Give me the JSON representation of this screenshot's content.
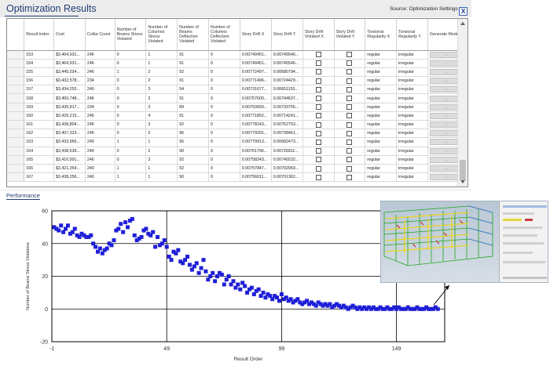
{
  "header": {
    "title": "Optimization Results",
    "source": "Source: Optimization Settings",
    "close": "X"
  },
  "colors": {
    "accent": "#1f3d73",
    "points": "#1f1fd8",
    "grid": "#000000"
  },
  "table": {
    "columns": [
      "",
      "Result Index",
      "Cost",
      "Collar Count",
      "Number of Beams Stress Violated",
      "Number of Columns Stress Violated",
      "Number of Beams Deflection Violated",
      "Number of Columns Deflection Violated",
      "Story Drift X",
      "Story Drift Y",
      "Story Drift Violated X",
      "Story Drift Violated Y",
      "Torsional Regularity X",
      "Torsional Regularity Y",
      "Generate Model"
    ],
    "generate_label": "...",
    "rows": [
      [
        "153",
        "$3,464,931...",
        "246",
        "0",
        "1",
        "91",
        "0",
        "0.00749451...",
        "0.00745546...",
        "regular",
        "irregular"
      ],
      [
        "154",
        "$3,464,931...",
        "246",
        "0",
        "1",
        "91",
        "0",
        "0.00749451...",
        "0.00745546...",
        "regular",
        "irregular"
      ],
      [
        "155",
        "$3,445,024...",
        "246",
        "1",
        "2",
        "92",
        "0",
        "0.00772497...",
        "0.00680794...",
        "regular",
        "irregular"
      ],
      [
        "156",
        "$3,432,578...",
        "234",
        "0",
        "2",
        "91",
        "0",
        "0.00771496...",
        "0.00724429...",
        "regular",
        "irregular"
      ],
      [
        "157",
        "$3,434,253...",
        "240",
        "0",
        "3",
        "94",
        "0",
        "0.00731677...",
        "0.00651153...",
        "regular",
        "irregular"
      ],
      [
        "158",
        "$3,450,748...",
        "246",
        "0",
        "3",
        "91",
        "0",
        "0.00757600...",
        "0.00744637...",
        "regular",
        "irregular"
      ],
      [
        "159",
        "$3,435,917...",
        "234",
        "0",
        "3",
        "89",
        "0",
        "0.00753650...",
        "0.00733755...",
        "regular",
        "irregular"
      ],
      [
        "160",
        "$3,429,215...",
        "246",
        "0",
        "4",
        "91",
        "0",
        "0.00771852...",
        "0.00714241...",
        "regular",
        "irregular"
      ],
      [
        "161",
        "$3,438,804...",
        "246",
        "0",
        "3",
        "92",
        "0",
        "0.00778143...",
        "0.00762753...",
        "regular",
        "irregular"
      ],
      [
        "162",
        "$3,407,323...",
        "246",
        "0",
        "2",
        "96",
        "0",
        "0.00779291...",
        "0.00738461...",
        "regular",
        "irregular"
      ],
      [
        "163",
        "$3,433,966...",
        "240",
        "1",
        "1",
        "95",
        "0",
        "0.00779913...",
        "0.00682473...",
        "regular",
        "irregular"
      ],
      [
        "164",
        "$3,438,639...",
        "240",
        "0",
        "2",
        "90",
        "0",
        "0.00761796...",
        "0.00726911...",
        "regular",
        "irregular"
      ],
      [
        "165",
        "$3,410,991...",
        "246",
        "0",
        "3",
        "92",
        "0",
        "0.00758243...",
        "0.00745532...",
        "regular",
        "irregular"
      ],
      [
        "166",
        "$3,421,354...",
        "240",
        "1",
        "1",
        "92",
        "0",
        "0.00757847...",
        "0.00702969...",
        "regular",
        "irregular"
      ],
      [
        "167",
        "$3,438,256...",
        "240",
        "1",
        "1",
        "90",
        "0",
        "0.00756011...",
        "0.00701362...",
        "regular",
        "irregular"
      ]
    ]
  },
  "performance": {
    "label": "Performance",
    "ylabel": "Number of Beams Stress Violations",
    "xlabel": "Result Order",
    "xticks": [
      "-1",
      "49",
      "99",
      "149"
    ],
    "yticks": [
      "60",
      "40",
      "20",
      "0",
      "-20"
    ]
  },
  "chart_data": {
    "type": "scatter",
    "xlabel": "Result Order",
    "ylabel": "Number of Beams Stress Violations",
    "xlim": [
      -1,
      170
    ],
    "ylim": [
      -20,
      60
    ],
    "grid": true,
    "x": [
      0,
      1,
      2,
      3,
      4,
      5,
      6,
      7,
      8,
      9,
      10,
      11,
      12,
      13,
      14,
      15,
      16,
      17,
      18,
      19,
      20,
      21,
      22,
      23,
      24,
      25,
      26,
      27,
      28,
      29,
      30,
      31,
      32,
      33,
      34,
      35,
      36,
      37,
      38,
      39,
      40,
      41,
      42,
      43,
      44,
      45,
      46,
      47,
      48,
      49,
      50,
      51,
      52,
      53,
      54,
      55,
      56,
      57,
      58,
      59,
      60,
      61,
      62,
      63,
      64,
      65,
      66,
      67,
      68,
      69,
      70,
      71,
      72,
      73,
      74,
      75,
      76,
      77,
      78,
      79,
      80,
      81,
      82,
      83,
      84,
      85,
      86,
      87,
      88,
      89,
      90,
      91,
      92,
      93,
      94,
      95,
      96,
      97,
      98,
      99,
      100,
      101,
      102,
      103,
      104,
      105,
      106,
      107,
      108,
      109,
      110,
      111,
      112,
      113,
      114,
      115,
      116,
      117,
      118,
      119,
      120,
      121,
      122,
      123,
      124,
      125,
      126,
      127,
      128,
      129,
      130,
      131,
      132,
      133,
      134,
      135,
      136,
      137,
      138,
      139,
      140,
      141,
      142,
      143,
      144,
      145,
      146,
      147,
      148,
      149,
      150,
      151,
      152,
      153,
      154,
      155,
      156,
      157,
      158,
      159,
      160,
      161,
      162,
      163,
      164,
      165,
      166,
      167
    ],
    "y": [
      50,
      49,
      48,
      51,
      47,
      49,
      51,
      46,
      47,
      49,
      45,
      44,
      46,
      45,
      44,
      44,
      45,
      40,
      38,
      35,
      37,
      34,
      36,
      37,
      40,
      39,
      42,
      48,
      49,
      52,
      47,
      53,
      50,
      54,
      55,
      45,
      42,
      43,
      44,
      48,
      49,
      46,
      45,
      47,
      38,
      44,
      39,
      40,
      42,
      38,
      32,
      30,
      35,
      34,
      36,
      29,
      28,
      30,
      32,
      27,
      24,
      26,
      28,
      22,
      25,
      30,
      23,
      18,
      20,
      22,
      17,
      20,
      22,
      21,
      15,
      18,
      20,
      15,
      17,
      13,
      15,
      12,
      16,
      14,
      10,
      12,
      13,
      9,
      11,
      12,
      8,
      10,
      7,
      9,
      8,
      6,
      8,
      7,
      5,
      9,
      6,
      7,
      5,
      6,
      4,
      5,
      6,
      4,
      3,
      4,
      5,
      3,
      4,
      3,
      2,
      4,
      3,
      2,
      3,
      2,
      3,
      1,
      2,
      3,
      2,
      1,
      2,
      1,
      0,
      1,
      2,
      1,
      0,
      1,
      0,
      1,
      0,
      1,
      0,
      1,
      0,
      0,
      1,
      0,
      0,
      1,
      0,
      0,
      1,
      0,
      1,
      0,
      0,
      0,
      1,
      0,
      0,
      0,
      1,
      0,
      0,
      0,
      1,
      0,
      0,
      0,
      1,
      0
    ]
  }
}
